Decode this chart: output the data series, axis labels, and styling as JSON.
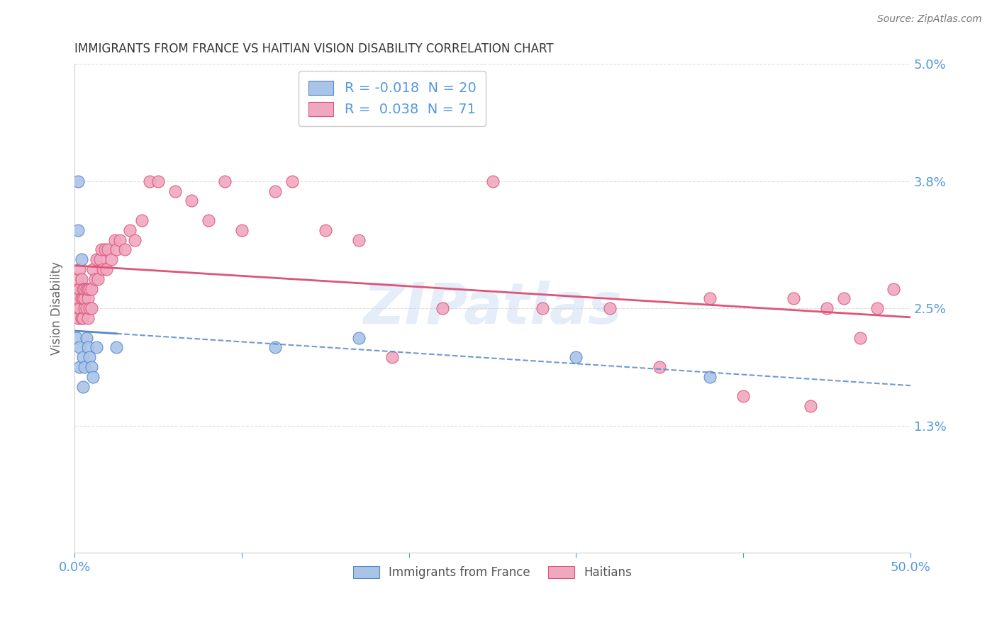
{
  "title": "IMMIGRANTS FROM FRANCE VS HAITIAN VISION DISABILITY CORRELATION CHART",
  "source": "Source: ZipAtlas.com",
  "ylabel": "Vision Disability",
  "watermark": "ZIPatlas",
  "ylim": [
    0.0,
    0.05
  ],
  "xlim": [
    0.0,
    0.5
  ],
  "yticks": [
    0.013,
    0.025,
    0.038,
    0.05
  ],
  "ytick_labels": [
    "1.3%",
    "2.5%",
    "3.8%",
    "5.0%"
  ],
  "france_color": "#aac4e8",
  "haiti_color": "#f0a8c0",
  "france_line_color": "#5588cc",
  "haiti_line_color": "#dd5577",
  "legend_france_label": "R = -0.018  N = 20",
  "legend_haiti_label": "R =  0.038  N = 71",
  "france_x": [
    0.001,
    0.002,
    0.002,
    0.003,
    0.003,
    0.004,
    0.005,
    0.005,
    0.006,
    0.007,
    0.008,
    0.009,
    0.01,
    0.011,
    0.013,
    0.025,
    0.12,
    0.17,
    0.3,
    0.38
  ],
  "france_y": [
    0.022,
    0.038,
    0.033,
    0.021,
    0.019,
    0.03,
    0.02,
    0.017,
    0.019,
    0.022,
    0.021,
    0.02,
    0.019,
    0.018,
    0.021,
    0.021,
    0.021,
    0.022,
    0.02,
    0.018
  ],
  "haiti_x": [
    0.001,
    0.001,
    0.001,
    0.002,
    0.002,
    0.002,
    0.003,
    0.003,
    0.003,
    0.004,
    0.004,
    0.004,
    0.005,
    0.005,
    0.005,
    0.006,
    0.006,
    0.006,
    0.007,
    0.007,
    0.008,
    0.008,
    0.008,
    0.009,
    0.009,
    0.01,
    0.01,
    0.011,
    0.012,
    0.013,
    0.014,
    0.015,
    0.016,
    0.017,
    0.018,
    0.019,
    0.02,
    0.022,
    0.024,
    0.025,
    0.027,
    0.03,
    0.033,
    0.036,
    0.04,
    0.045,
    0.05,
    0.06,
    0.07,
    0.08,
    0.09,
    0.1,
    0.12,
    0.13,
    0.15,
    0.17,
    0.19,
    0.22,
    0.25,
    0.28,
    0.32,
    0.35,
    0.38,
    0.4,
    0.43,
    0.44,
    0.45,
    0.46,
    0.47,
    0.48,
    0.49
  ],
  "haiti_y": [
    0.025,
    0.027,
    0.028,
    0.024,
    0.026,
    0.028,
    0.025,
    0.027,
    0.029,
    0.024,
    0.026,
    0.028,
    0.024,
    0.026,
    0.027,
    0.025,
    0.026,
    0.027,
    0.025,
    0.027,
    0.024,
    0.026,
    0.027,
    0.025,
    0.027,
    0.025,
    0.027,
    0.029,
    0.028,
    0.03,
    0.028,
    0.03,
    0.031,
    0.029,
    0.031,
    0.029,
    0.031,
    0.03,
    0.032,
    0.031,
    0.032,
    0.031,
    0.033,
    0.032,
    0.034,
    0.038,
    0.038,
    0.037,
    0.036,
    0.034,
    0.038,
    0.033,
    0.037,
    0.038,
    0.033,
    0.032,
    0.02,
    0.025,
    0.038,
    0.025,
    0.025,
    0.019,
    0.026,
    0.016,
    0.026,
    0.015,
    0.025,
    0.026,
    0.022,
    0.025,
    0.027
  ],
  "france_line_solid_end": 0.025,
  "background_color": "#ffffff",
  "grid_color": "#dddddd",
  "title_color": "#333333",
  "tick_label_color": "#5599dd"
}
